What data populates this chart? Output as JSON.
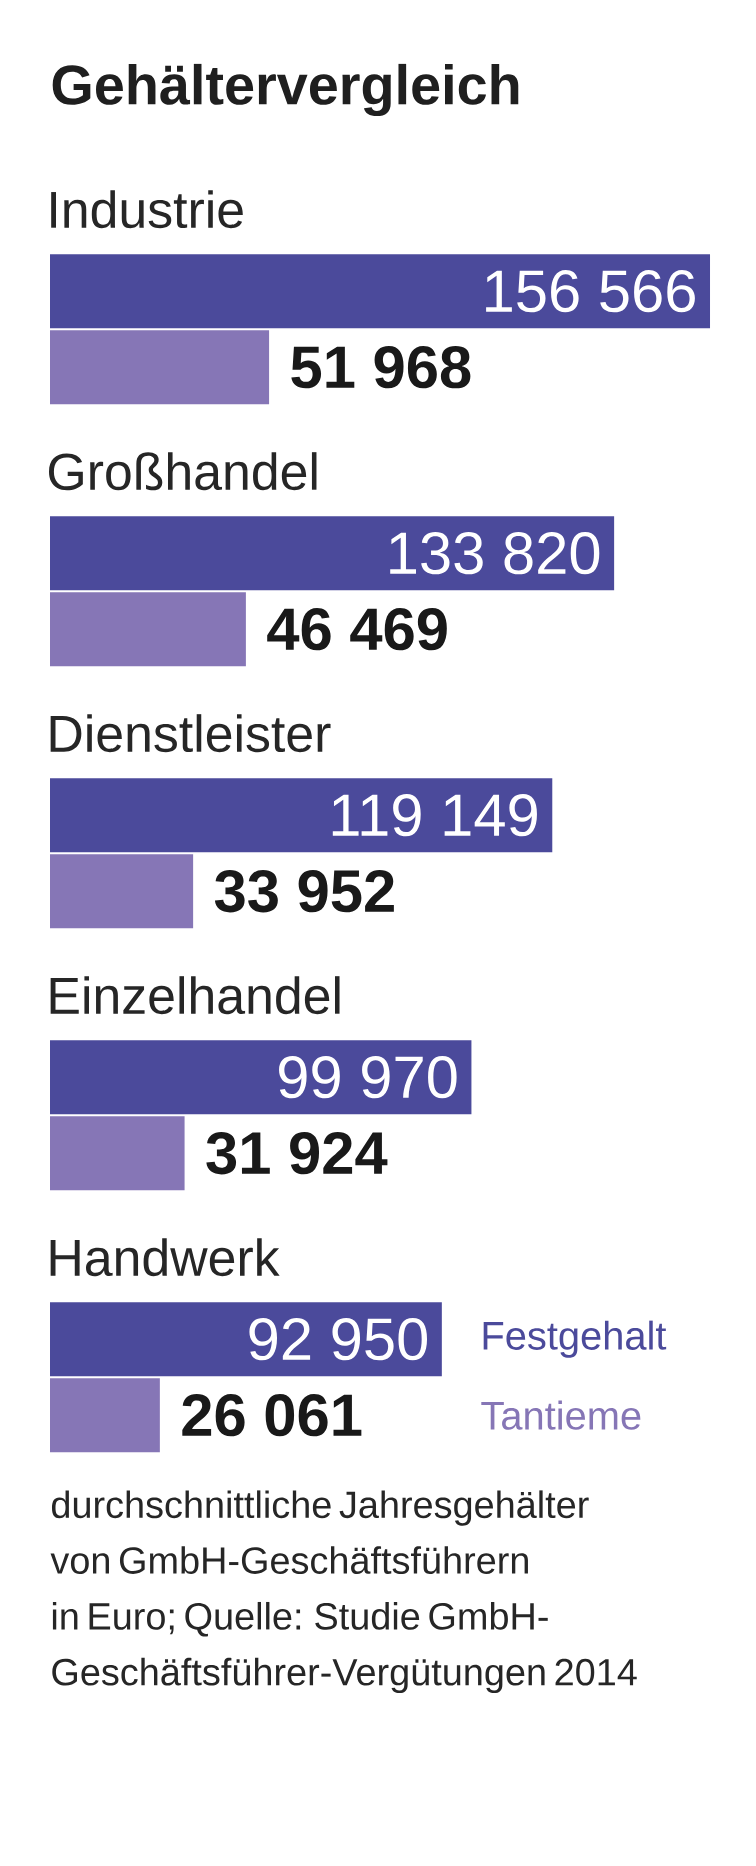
{
  "chart_data": {
    "type": "bar",
    "orientation": "horizontal",
    "title": "Gehältervergleich",
    "categories": [
      "Industrie",
      "Großhandel",
      "Dienstleister",
      "Einzelhandel",
      "Handwerk"
    ],
    "series": [
      {
        "name": "Festgehalt",
        "color": "#4b4a9b",
        "values": [
          156566,
          133820,
          119149,
          99970,
          92950
        ],
        "value_labels": [
          "156 566",
          "133 820",
          "119 149",
          "99 970",
          "92 950"
        ]
      },
      {
        "name": "Tantieme",
        "color": "#8676b6",
        "values": [
          51968,
          46469,
          33952,
          31924,
          26061
        ],
        "value_labels": [
          "51 968",
          "46 469",
          "33 952",
          "31 924",
          "26 061"
        ]
      }
    ],
    "legend": "bottom right",
    "annotations": [
      "durchschnittliche Jahresgehälter von GmbH-Geschäftsführern in Euro; Quelle: Studie GmbH-Geschäftsführer-Vergütungen 2014"
    ]
  }
}
